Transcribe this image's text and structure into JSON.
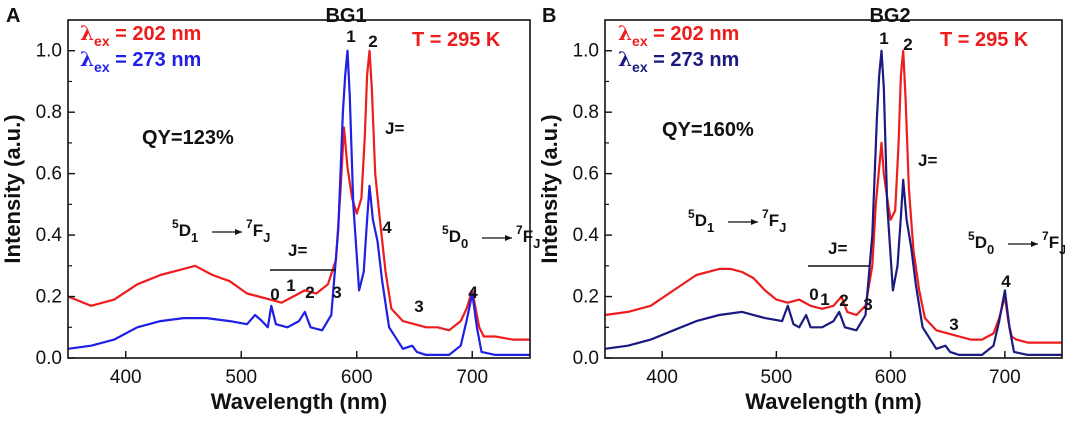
{
  "chart_data": [
    {
      "type": "line",
      "panel": "A",
      "title": "BG1",
      "xlabel": "Wavelength (nm)",
      "ylabel": "Intensity (a.u.)",
      "xlim": [
        350,
        750
      ],
      "ylim": [
        0.0,
        1.1
      ],
      "xticks": [
        "400",
        "500",
        "600",
        "700"
      ],
      "yticks": [
        "0.0",
        "0.2",
        "0.4",
        "0.6",
        "0.8",
        "1.0"
      ],
      "colors": {
        "ex202": "#ee1c1c",
        "ex273": "#1f1fe6"
      },
      "legend": {
        "s1_symbol": "λ",
        "s1_sub": "ex",
        "s1_value": " = 202 nm",
        "s2_symbol": "λ",
        "s2_sub": "ex",
        "s2_value": " = 273 nm"
      },
      "temperature": "T = 295 K",
      "qy": "QY=123%",
      "annotations": {
        "d1": {
          "s1": "5",
          "main1": "D",
          "sb1": "1",
          "s2": "7",
          "main2": "F",
          "sb2": "J"
        },
        "d0": {
          "s1": "5",
          "main1": "D",
          "sb1": "0",
          "s2": "7",
          "main2": "F",
          "sb2": "J"
        },
        "j_left": "J=",
        "j_right": "J=",
        "peaks": [
          "0",
          "1",
          "2",
          "3",
          "1",
          "2",
          "4",
          "3",
          "4"
        ]
      },
      "series": [
        {
          "name": "λex = 202 nm",
          "color": "#ee1c1c",
          "x": [
            350,
            370,
            390,
            410,
            430,
            450,
            460,
            475,
            490,
            505,
            515,
            525,
            535,
            545,
            555,
            565,
            575,
            582,
            586,
            589,
            592,
            596,
            600,
            604,
            607,
            609,
            611,
            613,
            616,
            620,
            625,
            630,
            640,
            650,
            660,
            670,
            680,
            690,
            695,
            700,
            703,
            706,
            710,
            720,
            735,
            750
          ],
          "y": [
            0.2,
            0.17,
            0.19,
            0.24,
            0.27,
            0.29,
            0.3,
            0.27,
            0.25,
            0.21,
            0.2,
            0.19,
            0.18,
            0.2,
            0.22,
            0.21,
            0.24,
            0.32,
            0.55,
            0.75,
            0.62,
            0.52,
            0.47,
            0.52,
            0.72,
            0.92,
            1.0,
            0.88,
            0.6,
            0.45,
            0.28,
            0.16,
            0.12,
            0.11,
            0.1,
            0.1,
            0.09,
            0.12,
            0.16,
            0.22,
            0.16,
            0.1,
            0.07,
            0.07,
            0.06,
            0.06
          ]
        },
        {
          "name": "λex = 273 nm",
          "color": "#1f1fe6",
          "x": [
            350,
            370,
            390,
            410,
            430,
            450,
            470,
            490,
            505,
            512,
            518,
            523,
            526,
            530,
            540,
            550,
            555,
            560,
            570,
            578,
            584,
            588,
            590,
            592,
            594,
            597,
            602,
            606,
            609,
            611,
            614,
            618,
            622,
            628,
            640,
            648,
            652,
            660,
            680,
            690,
            695,
            700,
            704,
            708,
            720,
            750
          ],
          "y": [
            0.03,
            0.04,
            0.06,
            0.1,
            0.12,
            0.13,
            0.13,
            0.12,
            0.11,
            0.14,
            0.12,
            0.1,
            0.17,
            0.11,
            0.1,
            0.12,
            0.15,
            0.1,
            0.09,
            0.14,
            0.42,
            0.8,
            0.92,
            1.0,
            0.85,
            0.5,
            0.22,
            0.28,
            0.45,
            0.56,
            0.45,
            0.38,
            0.25,
            0.1,
            0.03,
            0.04,
            0.02,
            0.01,
            0.01,
            0.04,
            0.12,
            0.21,
            0.1,
            0.02,
            0.01,
            0.01
          ]
        }
      ]
    },
    {
      "type": "line",
      "panel": "B",
      "title": "BG2",
      "xlabel": "Wavelength (nm)",
      "ylabel": "Intensity (a.u.)",
      "xlim": [
        350,
        750
      ],
      "ylim": [
        0.0,
        1.1
      ],
      "xticks": [
        "400",
        "500",
        "600",
        "700"
      ],
      "yticks": [
        "0.0",
        "0.2",
        "0.4",
        "0.6",
        "0.8",
        "1.0"
      ],
      "colors": {
        "ex202": "#ee1c1c",
        "ex273": "#1a1a80"
      },
      "legend": {
        "s1_symbol": "λ",
        "s1_sub": "ex",
        "s1_value": " = 202 nm",
        "s2_symbol": "λ",
        "s2_sub": "ex",
        "s2_value": " = 273 nm"
      },
      "temperature": "T = 295 K",
      "qy": "QY=160%",
      "annotations": {
        "d1": {
          "s1": "5",
          "main1": "D",
          "sb1": "1",
          "s2": "7",
          "main2": "F",
          "sb2": "J"
        },
        "d0": {
          "s1": "5",
          "main1": "D",
          "sb1": "0",
          "s2": "7",
          "main2": "F",
          "sb2": "J"
        },
        "j_left": "J=",
        "j_right": "J=",
        "peaks": [
          "0",
          "1",
          "2",
          "3",
          "1",
          "2",
          "3",
          "4"
        ]
      },
      "series": [
        {
          "name": "λex = 202 nm",
          "color": "#ee1c1c",
          "x": [
            350,
            370,
            390,
            410,
            430,
            450,
            460,
            470,
            480,
            490,
            500,
            510,
            520,
            530,
            540,
            550,
            557,
            562,
            570,
            578,
            584,
            587,
            590,
            592,
            594,
            597,
            600,
            604,
            607,
            609,
            611,
            613,
            616,
            620,
            625,
            630,
            640,
            650,
            660,
            670,
            680,
            690,
            695,
            700,
            703,
            706,
            710,
            720,
            735,
            750
          ],
          "y": [
            0.14,
            0.15,
            0.17,
            0.22,
            0.27,
            0.29,
            0.29,
            0.28,
            0.26,
            0.22,
            0.19,
            0.18,
            0.19,
            0.17,
            0.16,
            0.17,
            0.2,
            0.15,
            0.14,
            0.17,
            0.3,
            0.5,
            0.62,
            0.7,
            0.6,
            0.52,
            0.45,
            0.48,
            0.7,
            0.92,
            1.0,
            0.85,
            0.55,
            0.35,
            0.22,
            0.13,
            0.09,
            0.08,
            0.07,
            0.06,
            0.06,
            0.08,
            0.13,
            0.2,
            0.12,
            0.07,
            0.06,
            0.05,
            0.05,
            0.05
          ]
        },
        {
          "name": "λex = 273 nm",
          "color": "#1a1a80",
          "x": [
            350,
            370,
            390,
            410,
            430,
            450,
            470,
            490,
            505,
            510,
            515,
            520,
            526,
            530,
            540,
            550,
            555,
            560,
            570,
            578,
            584,
            588,
            590,
            592,
            594,
            597,
            602,
            606,
            609,
            611,
            614,
            618,
            622,
            628,
            640,
            648,
            652,
            660,
            680,
            690,
            695,
            700,
            704,
            708,
            720,
            750
          ],
          "y": [
            0.03,
            0.04,
            0.06,
            0.09,
            0.12,
            0.14,
            0.15,
            0.13,
            0.12,
            0.17,
            0.11,
            0.1,
            0.14,
            0.1,
            0.1,
            0.12,
            0.15,
            0.1,
            0.09,
            0.14,
            0.4,
            0.78,
            0.92,
            1.0,
            0.88,
            0.5,
            0.22,
            0.3,
            0.46,
            0.58,
            0.45,
            0.36,
            0.24,
            0.1,
            0.03,
            0.04,
            0.02,
            0.01,
            0.01,
            0.04,
            0.12,
            0.22,
            0.1,
            0.02,
            0.01,
            0.01
          ]
        }
      ]
    }
  ]
}
